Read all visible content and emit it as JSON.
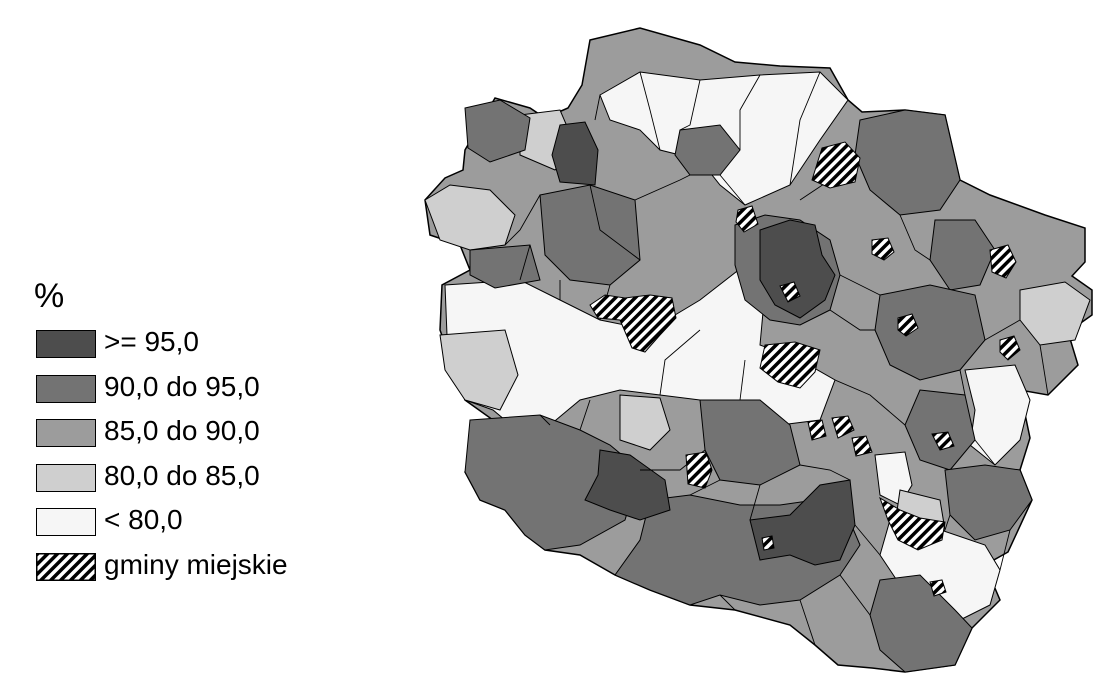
{
  "legend": {
    "title": "%",
    "items": [
      {
        "label": ">= 95,0",
        "color": "#4d4d4d"
      },
      {
        "label": "90,0 do 95,0",
        "color": "#737373"
      },
      {
        "label": "85,0 do 90,0",
        "color": "#9c9c9c"
      },
      {
        "label": "80,0 do 85,0",
        "color": "#cfcfcf"
      },
      {
        "label": "< 80,0",
        "color": "#f6f6f6"
      },
      {
        "label": "gminy miejskie",
        "pattern": "diagonal-hatch"
      }
    ]
  },
  "colors": {
    "outline": "#000000",
    "background": "#ffffff",
    "hatch": "#000000"
  }
}
